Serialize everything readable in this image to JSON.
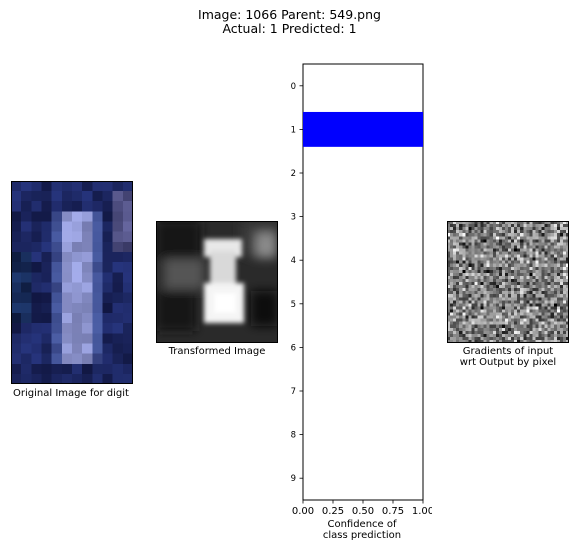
{
  "header": {
    "line1": "Image: 1066 Parent: 549.png",
    "line2": "Actual: 1 Predicted: 1"
  },
  "panels": {
    "original": {
      "caption": "Original Image for digit"
    },
    "transformed": {
      "caption": "Transformed Image"
    },
    "gradients": {
      "caption_line1": "Gradients of input",
      "caption_line2": "wrt Output by pixel"
    }
  },
  "chart_data": {
    "type": "bar",
    "orientation": "horizontal",
    "categories": [
      "0",
      "1",
      "2",
      "3",
      "4",
      "5",
      "6",
      "7",
      "8",
      "9"
    ],
    "values": [
      0,
      1.0,
      0,
      0,
      0,
      0,
      0,
      0,
      0,
      0
    ],
    "xlabel_line1": "Confidence of",
    "xlabel_line2": "class prediction",
    "xlim": [
      0,
      1
    ],
    "xticks": [
      "0.00",
      "0.25",
      "0.50",
      "0.75",
      "1.00"
    ],
    "y_inverted": true,
    "bar_color": "#0000ff",
    "grid": false
  }
}
